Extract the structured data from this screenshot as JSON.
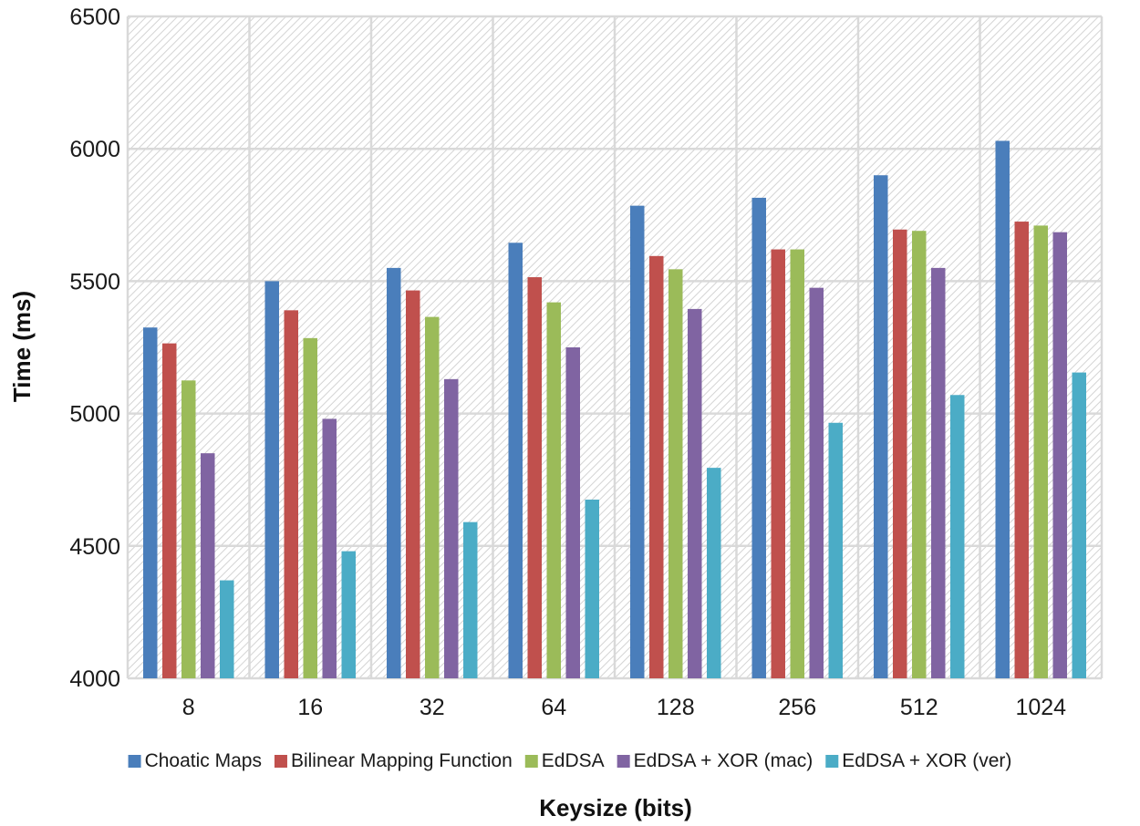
{
  "chart_data": {
    "type": "bar",
    "title": "",
    "xlabel": "Keysize (bits)",
    "ylabel": "Time (ms)",
    "ylim": [
      4000,
      6500
    ],
    "yticks": [
      4000,
      4500,
      5000,
      5500,
      6000,
      6500
    ],
    "categories": [
      "8",
      "16",
      "32",
      "64",
      "128",
      "256",
      "512",
      "1024"
    ],
    "grid": true,
    "legend_position": "bottom",
    "series": [
      {
        "name": "Choatic Maps",
        "color": "#4a7ebb",
        "values": [
          5325,
          5500,
          5550,
          5645,
          5785,
          5815,
          5900,
          6030
        ]
      },
      {
        "name": "Bilinear Mapping Function",
        "color": "#c0504d",
        "values": [
          5265,
          5390,
          5465,
          5515,
          5595,
          5620,
          5695,
          5725
        ]
      },
      {
        "name": "EdDSA",
        "color": "#9bbb59",
        "values": [
          5125,
          5285,
          5365,
          5420,
          5545,
          5620,
          5690,
          5710
        ]
      },
      {
        "name": "EdDSA + XOR (mac)",
        "color": "#8064a2",
        "values": [
          4850,
          4980,
          5130,
          5250,
          5395,
          5475,
          5550,
          5685
        ]
      },
      {
        "name": "EdDSA + XOR (ver)",
        "color": "#4bacc6",
        "values": [
          4370,
          4480,
          4590,
          4675,
          4795,
          4965,
          5070,
          5155
        ]
      }
    ]
  }
}
